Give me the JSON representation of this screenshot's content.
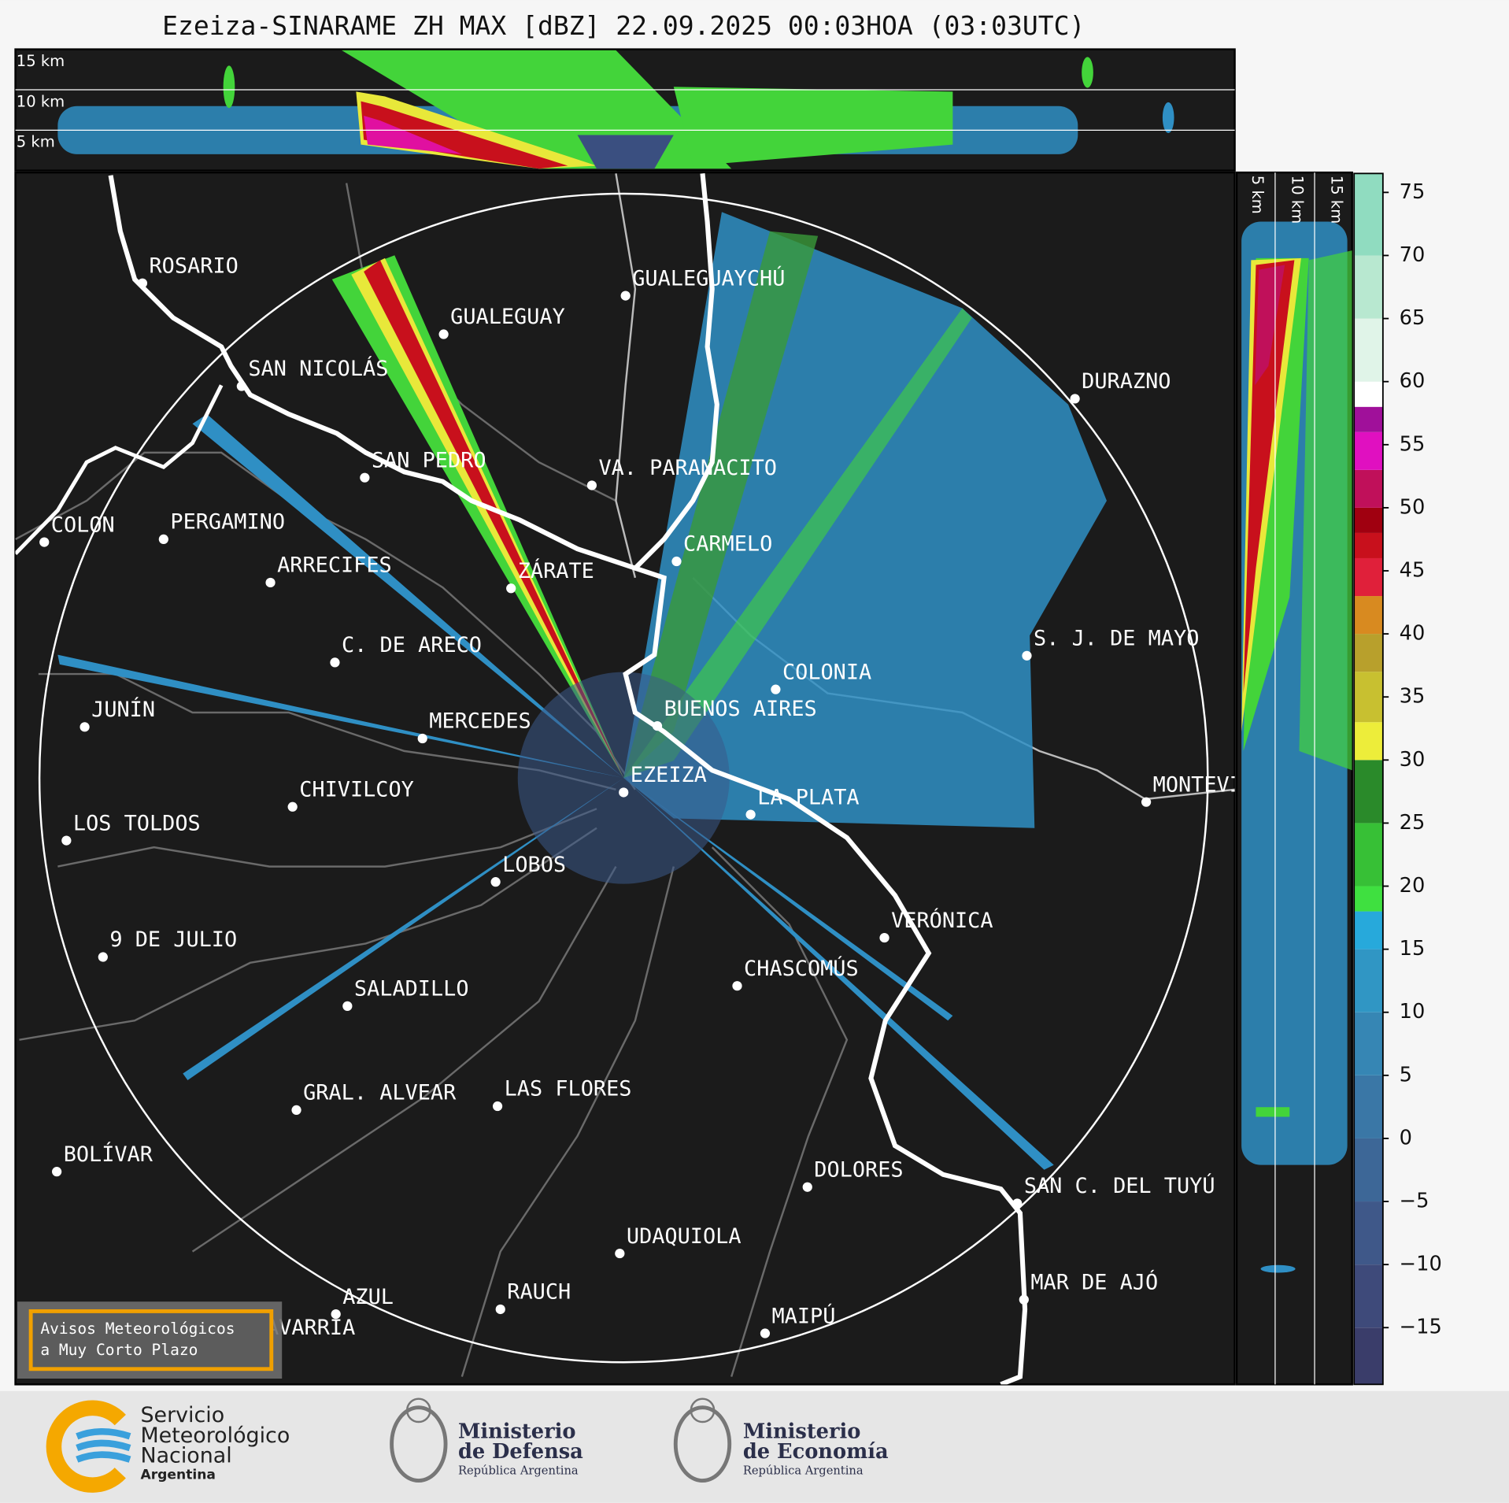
{
  "header": {
    "title": "Ezeiza-SINARAME ZH MAX [dBZ] 22.09.2025 00:03HOA (03:03UTC)"
  },
  "top_panel": {
    "labels": [
      "15 km",
      "10 km",
      "5 km"
    ]
  },
  "side_panel": {
    "labels": [
      "5 km",
      "10 km",
      "15 km"
    ]
  },
  "map": {
    "cities": [
      "ROSARIO",
      "GUALEGUAYCHÚ",
      "GUALEGUAY",
      "SAN NICOLÁS",
      "DURAZNO",
      "SAN PEDRO",
      "VA. PARANACITO",
      "COLON",
      "PERGAMINO",
      "CARMELO",
      "ARRECIFES",
      "ZÁRATE",
      "S. J. DE MAYO",
      "C. DE ARECO",
      "COLONIA",
      "BUENOS AIRES",
      "JUNÍN",
      "MERCEDES",
      "EZEIZA",
      "MONTEVIDEO",
      "CHIVILCOY",
      "LA PLATA",
      "LOS TOLDOS",
      "LOBOS",
      "VERÓNICA",
      "9 DE JULIO",
      "CHASCOMÚS",
      "SALADILLO",
      "GRAL. ALVEAR",
      "LAS FLORES",
      "BOLÍVAR",
      "DOLORES",
      "SAN C. DEL TUYÚ",
      "UDAQUIOLA",
      "MAR DE AJÓ",
      "RAUCH",
      "AZUL",
      "OLAVARRÍA",
      "MAIPÚ"
    ]
  },
  "badge": {
    "lines": [
      "Avisos Meteorológicos",
      "a Muy Corto Plazo"
    ]
  },
  "colorbar": {
    "range": [
      -19.5,
      76.5
    ],
    "ticks": [
      {
        "value": -15,
        "label": "−15"
      },
      {
        "value": -10,
        "label": "−10"
      },
      {
        "value": -5,
        "label": "−5"
      },
      0,
      5,
      10,
      15,
      20,
      25,
      30,
      35,
      40,
      45,
      50,
      55,
      60,
      65,
      70,
      75
    ],
    "bands": [
      {
        "from": -19.5,
        "color": "#3a3d6a"
      },
      {
        "from": -15,
        "color": "#3e4a7a"
      },
      {
        "from": -10,
        "color": "#3f5889"
      },
      {
        "from": -5,
        "color": "#3d6797"
      },
      {
        "from": 0,
        "color": "#3a77a6"
      },
      {
        "from": 5,
        "color": "#3686b4"
      },
      {
        "from": 10,
        "color": "#3096c4"
      },
      {
        "from": 15,
        "color": "#27a9db"
      },
      {
        "from": 18,
        "color": "#3fe040"
      },
      {
        "from": 20,
        "color": "#37c036"
      },
      {
        "from": 25,
        "color": "#2a8a2a"
      },
      {
        "from": 30,
        "color": "#eded3a"
      },
      {
        "from": 33,
        "color": "#c8c030"
      },
      {
        "from": 37,
        "color": "#b8a02c"
      },
      {
        "from": 40,
        "color": "#d88a20"
      },
      {
        "from": 43,
        "color": "#e0203a"
      },
      {
        "from": 46,
        "color": "#c8101c"
      },
      {
        "from": 48,
        "color": "#a00010"
      },
      {
        "from": 50,
        "color": "#c0105a"
      },
      {
        "from": 53,
        "color": "#e010c0"
      },
      {
        "from": 56,
        "color": "#a0109a"
      },
      {
        "from": 58,
        "color": "#ffffff"
      },
      {
        "from": 60,
        "color": "#e0f4e8"
      },
      {
        "from": 65,
        "color": "#b8e8d0"
      },
      {
        "from": 70,
        "color": "#90dcc0"
      }
    ]
  },
  "footer": {
    "logos": [
      {
        "lines": [
          "Servicio",
          "Meteorológico",
          "Nacional",
          "Argentina"
        ]
      },
      {
        "lines": [
          "Ministerio",
          "de Defensa",
          "República Argentina"
        ]
      },
      {
        "lines": [
          "Ministerio",
          "de Economía",
          "República Argentina"
        ]
      }
    ]
  }
}
